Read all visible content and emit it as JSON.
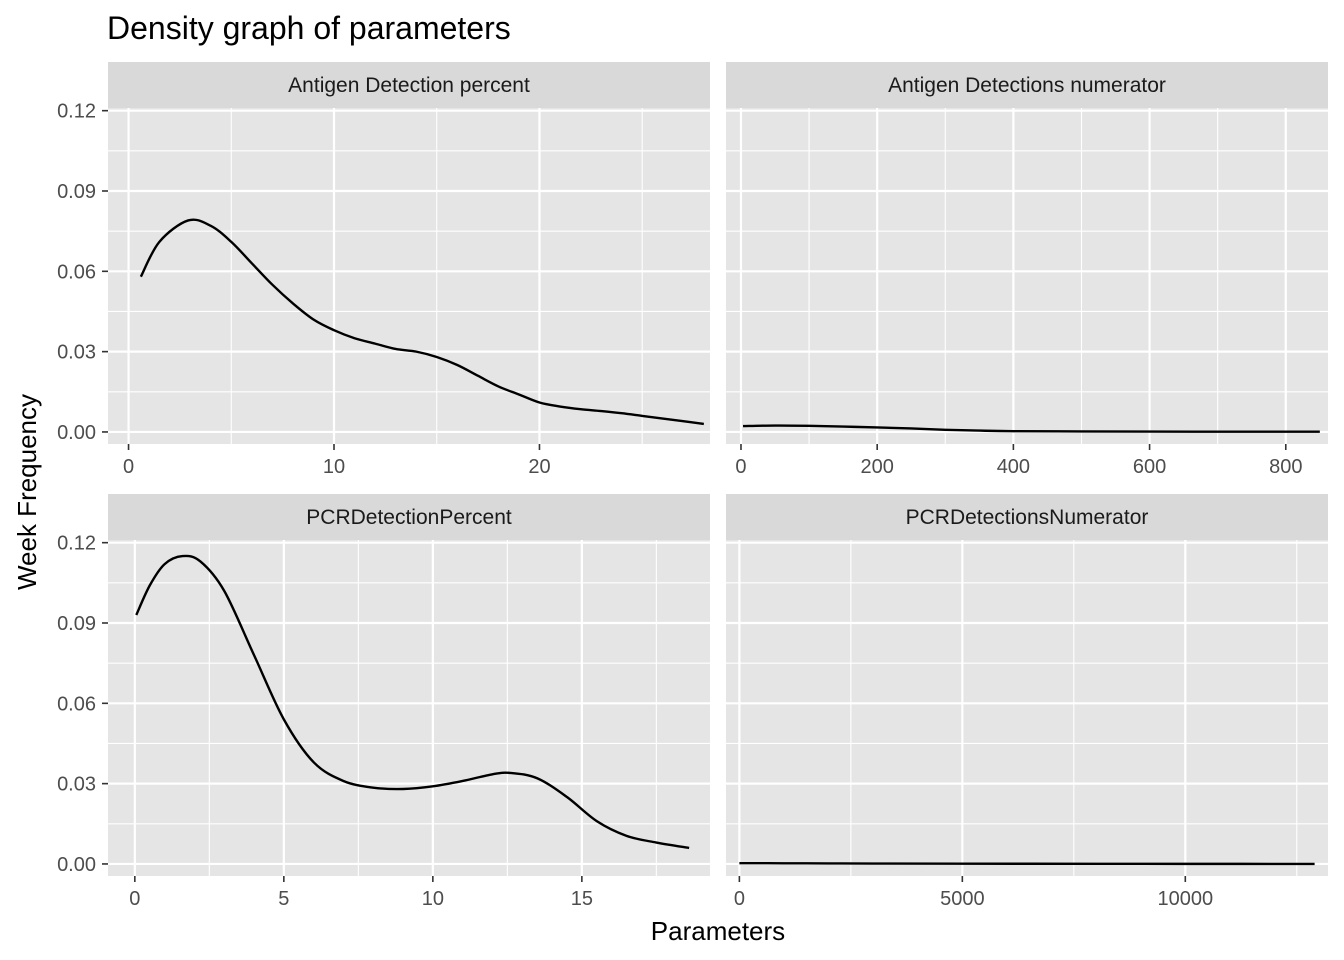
{
  "chart_data": {
    "type": "line",
    "title": "Density graph of parameters",
    "xlabel": "Parameters",
    "ylabel": "Week Frequency",
    "colors": {
      "panel_background": "#e5e5e5",
      "strip_background": "#d9d9d9",
      "grid": "#ffffff",
      "line": "#000000"
    },
    "grid": true,
    "facets": [
      {
        "name": "Antigen Detection percent",
        "xlim": [
          -1,
          28.3
        ],
        "ylim": [
          -0.0045,
          0.121
        ],
        "x_ticks": [
          0,
          10,
          20
        ],
        "x_tick_labels": [
          "0",
          "10",
          "20"
        ],
        "y_ticks": [
          0,
          0.03,
          0.06,
          0.09,
          0.12
        ],
        "y_tick_labels": [
          "0.00",
          "0.03",
          "0.06",
          "0.09",
          "0.12"
        ],
        "show_y_labels": true,
        "x": [
          0.6,
          1.5,
          2.9,
          4.0,
          5.0,
          6.0,
          7.0,
          8.0,
          9.0,
          10.0,
          11.0,
          12.0,
          13.0,
          14.0,
          15.0,
          16.0,
          17.0,
          18.0,
          19.0,
          20.0,
          21.0,
          22.0,
          23.0,
          24.0,
          25.0,
          26.0,
          27.0,
          28.0
        ],
        "y": [
          0.058,
          0.071,
          0.079,
          0.077,
          0.071,
          0.063,
          0.055,
          0.048,
          0.042,
          0.038,
          0.035,
          0.033,
          0.031,
          0.03,
          0.028,
          0.025,
          0.021,
          0.017,
          0.014,
          0.011,
          0.0095,
          0.0085,
          0.0078,
          0.007,
          0.006,
          0.005,
          0.004,
          0.003
        ]
      },
      {
        "name": "Antigen Detections numerator",
        "xlim": [
          -22,
          862
        ],
        "ylim": [
          -0.0045,
          0.121
        ],
        "x_ticks": [
          0,
          200,
          400,
          600,
          800
        ],
        "x_tick_labels": [
          "0",
          "200",
          "400",
          "600",
          "800"
        ],
        "y_ticks": [
          0,
          0.03,
          0.06,
          0.09,
          0.12
        ],
        "y_tick_labels": [
          "0.00",
          "0.03",
          "0.06",
          "0.09",
          "0.12"
        ],
        "show_y_labels": false,
        "x": [
          3,
          50,
          100,
          150,
          200,
          250,
          300,
          350,
          400,
          500,
          600,
          700,
          800,
          850
        ],
        "y": [
          0.0022,
          0.0024,
          0.0023,
          0.002,
          0.0017,
          0.0013,
          0.0008,
          0.0005,
          0.0003,
          0.0002,
          0.00015,
          0.0001,
          0.0001,
          0.0001
        ]
      },
      {
        "name": "PCRDetectionPercent",
        "xlim": [
          -0.9,
          19.3
        ],
        "ylim": [
          -0.0045,
          0.121
        ],
        "x_ticks": [
          0,
          5,
          10,
          15
        ],
        "x_tick_labels": [
          "0",
          "5",
          "10",
          "15"
        ],
        "y_ticks": [
          0,
          0.03,
          0.06,
          0.09,
          0.12
        ],
        "y_tick_labels": [
          "0.00",
          "0.03",
          "0.06",
          "0.09",
          "0.12"
        ],
        "show_y_labels": true,
        "x": [
          0.05,
          0.5,
          1.0,
          1.6,
          2.2,
          3.0,
          4.0,
          5.0,
          6.0,
          7.0,
          8.0,
          9.0,
          10.0,
          11.0,
          12.0,
          12.6,
          13.5,
          14.5,
          15.5,
          16.5,
          17.5,
          18.6
        ],
        "y": [
          0.093,
          0.104,
          0.112,
          0.115,
          0.113,
          0.102,
          0.078,
          0.054,
          0.038,
          0.031,
          0.0285,
          0.028,
          0.029,
          0.031,
          0.0335,
          0.034,
          0.032,
          0.025,
          0.016,
          0.0105,
          0.008,
          0.006
        ]
      },
      {
        "name": "PCRDetectionsNumerator",
        "xlim": [
          -300,
          13200
        ],
        "ylim": [
          -0.0045,
          0.121
        ],
        "x_ticks": [
          0,
          5000,
          10000
        ],
        "x_tick_labels": [
          "0",
          "5000",
          "10000"
        ],
        "y_ticks": [
          0,
          0.03,
          0.06,
          0.09,
          0.12
        ],
        "y_tick_labels": [
          "0.00",
          "0.03",
          "0.06",
          "0.09",
          "0.12"
        ],
        "show_y_labels": false,
        "x": [
          0,
          1000,
          2000,
          3000,
          5000,
          8000,
          10000,
          12900
        ],
        "y": [
          0.0003,
          0.00025,
          0.0002,
          0.00015,
          0.0001,
          5e-05,
          3e-05,
          2e-05
        ]
      }
    ]
  }
}
